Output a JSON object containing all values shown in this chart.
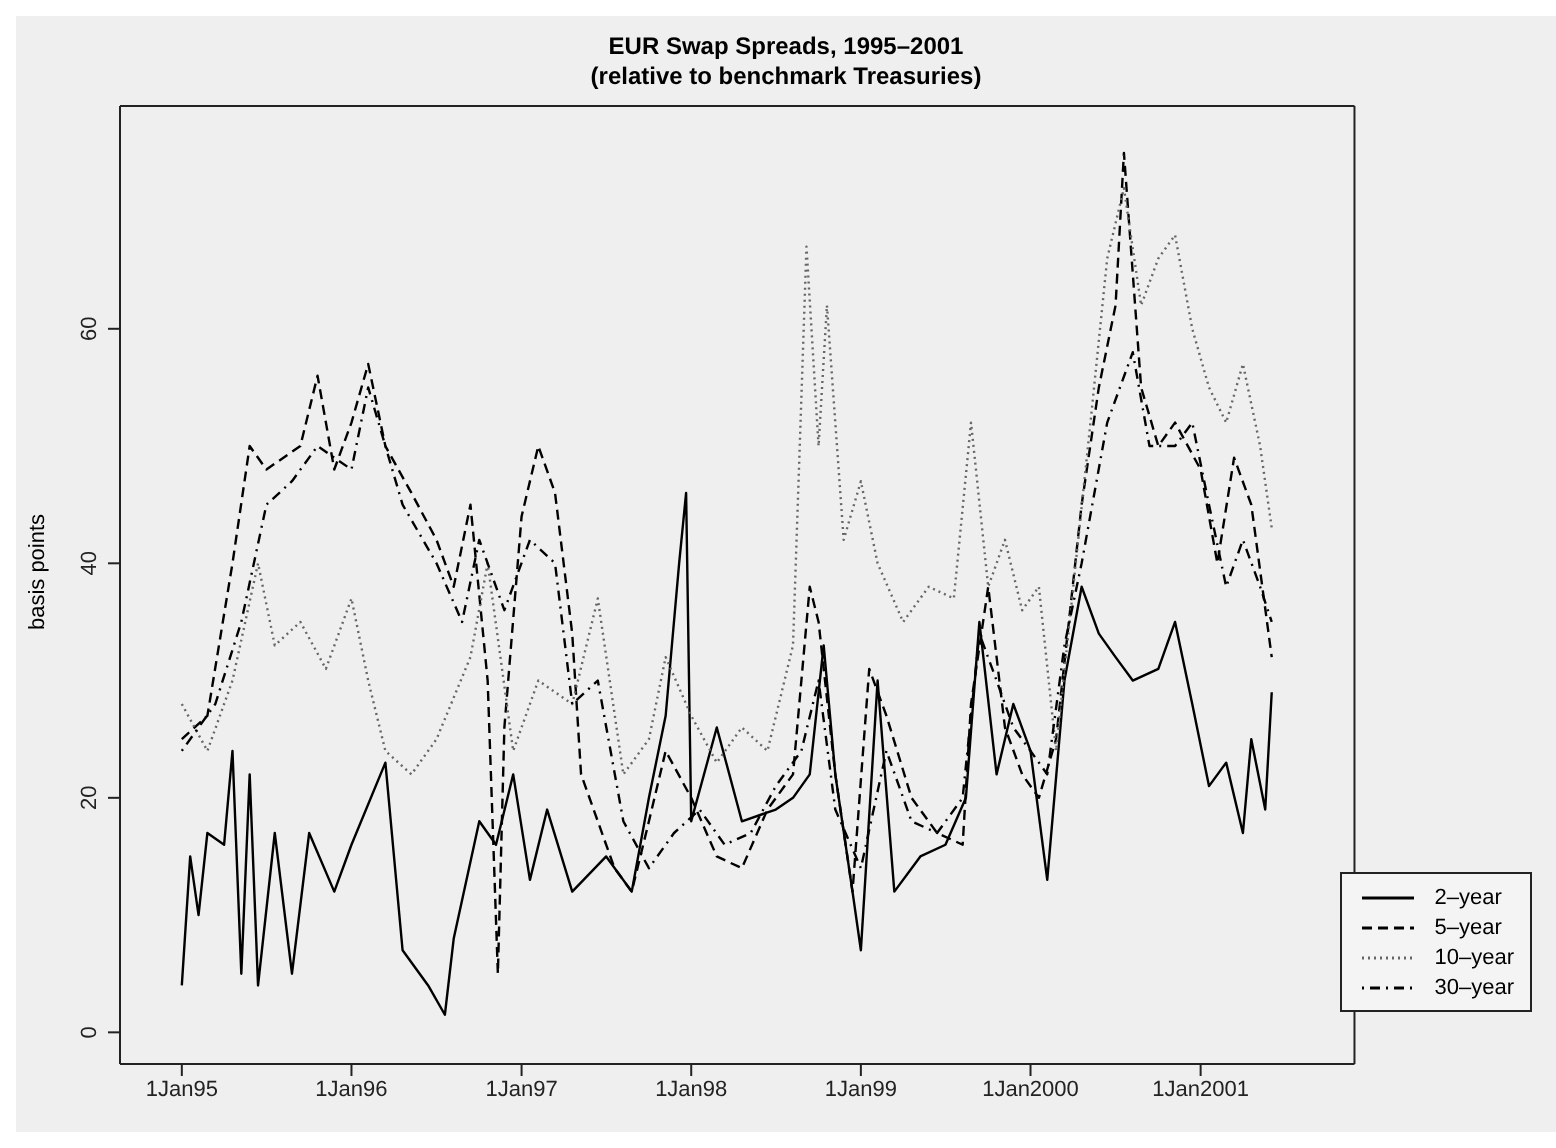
{
  "chart_data": {
    "type": "line",
    "title": "EUR Swap Spreads, 1995–2001",
    "subtitle": "(relative to benchmark Treasuries)",
    "ylabel": "basis points",
    "xlim": [
      "1994-08-21",
      "2001-11-28"
    ],
    "xticks": [
      {
        "value": "1995-01-01",
        "label": "1Jan95"
      },
      {
        "value": "1996-01-01",
        "label": "1Jan96"
      },
      {
        "value": "1997-01-01",
        "label": "1Jan97"
      },
      {
        "value": "1998-01-01",
        "label": "1Jan98"
      },
      {
        "value": "1999-01-01",
        "label": "1Jan99"
      },
      {
        "value": "2000-01-01",
        "label": "1Jan2000"
      },
      {
        "value": "2001-01-01",
        "label": "1Jan2001"
      }
    ],
    "ylim": [
      -2.7,
      79
    ],
    "yticks": [
      0,
      20,
      40,
      60
    ],
    "legend": "bottom right",
    "marker": "none",
    "series": [
      {
        "name": "2–year",
        "color": "#000000",
        "line_style": "solid",
        "x": [
          "1995-01-01",
          "1995-01-19",
          "1995-02-06",
          "1995-02-25",
          "1995-04-02",
          "1995-04-20",
          "1995-05-09",
          "1995-05-27",
          "1995-06-14",
          "1995-07-20",
          "1995-08-26",
          "1995-10-02",
          "1995-11-25",
          "1996-01-01",
          "1996-03-14",
          "1996-04-20",
          "1996-06-14",
          "1996-07-20",
          "1996-08-08",
          "1996-10-02",
          "1996-11-07",
          "1996-12-14",
          "1997-01-19",
          "1997-02-25",
          "1997-04-20",
          "1997-07-02",
          "1997-08-26",
          "1997-10-02",
          "1997-11-07",
          "1997-12-06",
          "1997-12-21",
          "1998-01-01",
          "1998-02-25",
          "1998-04-20",
          "1998-07-02",
          "1998-08-08",
          "1998-09-13",
          "1998-10-13",
          "1998-11-07",
          "1998-12-14",
          "1999-01-01",
          "1999-02-06",
          "1999-03-14",
          "1999-05-09",
          "1999-07-02",
          "1999-08-15",
          "1999-09-13",
          "1999-10-20",
          "1999-11-25",
          "2000-01-01",
          "2000-02-06",
          "2000-03-14",
          "2000-04-20",
          "2000-05-27",
          "2000-07-02",
          "2000-08-08",
          "2000-10-02",
          "2000-11-07",
          "2000-12-14",
          "2001-01-19",
          "2001-02-25",
          "2001-04-02",
          "2001-04-20",
          "2001-05-20",
          "2001-06-03"
        ],
        "values": [
          4,
          15,
          10,
          17,
          16,
          24,
          5,
          22,
          4,
          17,
          5,
          17,
          12,
          16,
          23,
          7,
          4,
          1.5,
          8,
          18,
          16,
          22,
          13,
          19,
          12,
          15,
          12,
          20,
          27,
          40,
          46,
          18,
          26,
          18,
          19,
          20,
          22,
          33,
          22,
          12,
          7,
          30,
          12,
          15,
          16,
          20,
          35,
          22,
          28,
          24,
          13,
          30,
          38,
          34,
          32,
          30,
          31,
          35,
          28,
          21,
          23,
          17,
          25,
          19,
          29
        ]
      },
      {
        "name": "5–year",
        "color": "#000000",
        "line_style": "dashed",
        "x": [
          "1995-01-01",
          "1995-02-25",
          "1995-04-20",
          "1995-05-27",
          "1995-07-02",
          "1995-09-13",
          "1995-10-20",
          "1995-11-25",
          "1996-01-01",
          "1996-02-06",
          "1996-03-14",
          "1996-05-09",
          "1996-07-02",
          "1996-08-08",
          "1996-09-13",
          "1996-10-20",
          "1996-11-11",
          "1996-11-25",
          "1997-01-01",
          "1997-02-06",
          "1997-03-14",
          "1997-04-20",
          "1997-05-09",
          "1997-06-14",
          "1997-07-20",
          "1997-08-26",
          "1997-10-02",
          "1997-11-07",
          "1998-01-01",
          "1998-02-25",
          "1998-04-20",
          "1998-06-14",
          "1998-08-08",
          "1998-09-13",
          "1998-10-02",
          "1998-11-07",
          "1998-12-14",
          "1999-01-19",
          "1999-02-25",
          "1999-04-20",
          "1999-06-14",
          "1999-08-08",
          "1999-08-26",
          "1999-10-02",
          "1999-11-07",
          "1999-12-14",
          "2000-01-19",
          "2000-02-25",
          "2000-04-20",
          "2000-05-27",
          "2000-07-02",
          "2000-07-20",
          "2000-08-26",
          "2000-10-02",
          "2000-11-07",
          "2001-01-01",
          "2001-02-06",
          "2001-03-14",
          "2001-04-20",
          "2001-06-03"
        ],
        "values": [
          25,
          27,
          40,
          50,
          48,
          50,
          56,
          48,
          52,
          57,
          50,
          46,
          42,
          38,
          45,
          30,
          5,
          26,
          44,
          50,
          46,
          34,
          22,
          18,
          14,
          12,
          18,
          24,
          20,
          15,
          14,
          19,
          22,
          38,
          35,
          22,
          12,
          31,
          27,
          20,
          17,
          16,
          28,
          38,
          26,
          22,
          20,
          25,
          45,
          55,
          62,
          75,
          55,
          50,
          52,
          48,
          40,
          49,
          45,
          32
        ]
      },
      {
        "name": "10–year",
        "color": "#666666",
        "line_style": "dotted",
        "x": [
          "1995-01-01",
          "1995-02-25",
          "1995-04-20",
          "1995-06-14",
          "1995-07-20",
          "1995-09-13",
          "1995-11-07",
          "1996-01-01",
          "1996-02-06",
          "1996-03-14",
          "1996-05-09",
          "1996-07-02",
          "1996-09-13",
          "1996-10-20",
          "1996-12-14",
          "1997-02-06",
          "1997-04-20",
          "1997-06-14",
          "1997-08-08",
          "1997-10-02",
          "1997-11-07",
          "1998-01-01",
          "1998-02-25",
          "1998-04-20",
          "1998-06-14",
          "1998-08-08",
          "1998-09-06",
          "1998-10-02",
          "1998-10-20",
          "1998-11-25",
          "1999-01-01",
          "1999-02-06",
          "1999-04-02",
          "1999-05-27",
          "1999-07-20",
          "1999-08-26",
          "1999-10-02",
          "1999-11-07",
          "1999-12-14",
          "2000-01-19",
          "2000-02-25",
          "2000-04-02",
          "2000-05-09",
          "2000-06-14",
          "2000-07-20",
          "2000-08-26",
          "2000-10-02",
          "2000-11-07",
          "2000-12-14",
          "2001-01-19",
          "2001-02-25",
          "2001-04-02",
          "2001-05-09",
          "2001-06-03"
        ],
        "values": [
          28,
          24,
          30,
          40,
          33,
          35,
          31,
          37,
          30,
          24,
          22,
          25,
          32,
          40,
          24,
          30,
          28,
          37,
          22,
          25,
          32,
          27,
          23,
          26,
          24,
          33,
          67,
          50,
          62,
          42,
          47,
          40,
          35,
          38,
          37,
          52,
          38,
          42,
          36,
          38,
          24,
          38,
          52,
          66,
          72,
          62,
          66,
          68,
          60,
          55,
          52,
          57,
          50,
          43
        ]
      },
      {
        "name": "30–year",
        "color": "#000000",
        "line_style": "dashdot",
        "x": [
          "1995-01-01",
          "1995-03-14",
          "1995-05-09",
          "1995-07-02",
          "1995-08-26",
          "1995-10-20",
          "1996-01-01",
          "1996-02-06",
          "1996-04-20",
          "1996-07-02",
          "1996-08-26",
          "1996-10-02",
          "1996-11-25",
          "1997-01-19",
          "1997-03-14",
          "1997-04-20",
          "1997-06-14",
          "1997-08-08",
          "1997-10-02",
          "1997-11-25",
          "1998-01-19",
          "1998-03-14",
          "1998-05-09",
          "1998-07-02",
          "1998-08-26",
          "1998-10-02",
          "1998-11-07",
          "1999-01-01",
          "1999-02-25",
          "1999-04-20",
          "1999-06-14",
          "1999-08-08",
          "1999-09-13",
          "1999-10-20",
          "1999-11-25",
          "2000-01-01",
          "2000-02-06",
          "2000-03-14",
          "2000-04-20",
          "2000-06-14",
          "2000-08-08",
          "2000-09-13",
          "2000-11-07",
          "2000-12-14",
          "2001-01-19",
          "2001-02-25",
          "2001-04-02",
          "2001-05-09",
          "2001-06-03"
        ],
        "values": [
          24,
          28,
          35,
          45,
          47,
          50,
          48,
          55,
          45,
          40,
          35,
          42,
          36,
          42,
          40,
          28,
          30,
          18,
          14,
          17,
          19,
          16,
          17,
          21,
          24,
          30,
          19,
          14,
          24,
          18,
          17,
          20,
          34,
          30,
          26,
          24,
          22,
          33,
          40,
          52,
          58,
          50,
          50,
          52,
          45,
          38,
          42,
          38,
          35
        ]
      }
    ]
  }
}
